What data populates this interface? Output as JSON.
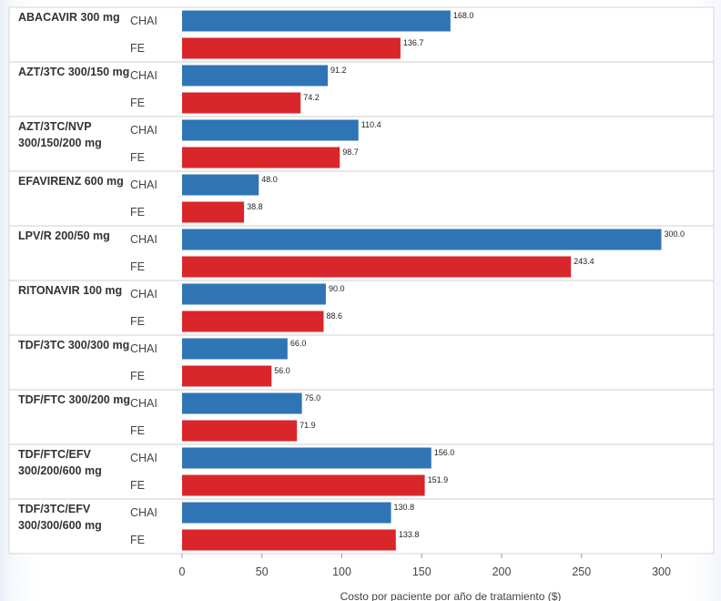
{
  "chart_data": {
    "type": "bar",
    "orientation": "horizontal",
    "categories": [
      "ABACAVIR 300 mg",
      "AZT/3TC 300/150 mg",
      "AZT/3TC/NVP 300/150/200 mg",
      "EFAVIRENZ 600 mg",
      "LPV/R 200/50 mg",
      "RITONAVIR 100 mg",
      "TDF/3TC 300/300 mg",
      "TDF/FTC 300/200 mg",
      "TDF/FTC/EFV 300/200/600 mg",
      "TDF/3TC/EFV 300/300/600 mg"
    ],
    "category_lines": [
      [
        "ABACAVIR 300 mg"
      ],
      [
        "AZT/3TC 300/150 mg"
      ],
      [
        "AZT/3TC/NVP",
        "300/150/200 mg"
      ],
      [
        "EFAVIRENZ 600 mg"
      ],
      [
        "LPV/R 200/50 mg"
      ],
      [
        "RITONAVIR 100 mg"
      ],
      [
        "TDF/3TC 300/300 mg"
      ],
      [
        "TDF/FTC 300/200 mg"
      ],
      [
        "TDF/FTC/EFV",
        "300/200/600 mg"
      ],
      [
        "TDF/3TC/EFV",
        "300/300/600 mg"
      ]
    ],
    "series": [
      {
        "name": "CHAI",
        "color": "#2f75b5",
        "values": [
          168.0,
          91.2,
          110.4,
          48.0,
          300.0,
          90.0,
          66.0,
          75.0,
          156.0,
          130.8
        ]
      },
      {
        "name": "FE",
        "color": "#d9262b",
        "values": [
          136.7,
          74.2,
          98.7,
          38.8,
          243.4,
          88.6,
          56.0,
          71.9,
          151.9,
          133.8
        ]
      }
    ],
    "value_labels": {
      "CHAI": [
        "168.0",
        "91.2",
        "110.4",
        "48.0",
        "300.0",
        "90.0",
        "66.0",
        "75.0",
        "156.0",
        "130.8"
      ],
      "FE": [
        "136.7",
        "74.2",
        "98.7",
        "38.8",
        "243.4",
        "88.6",
        "56.0",
        "71.9",
        "151.9",
        "133.8"
      ]
    },
    "xticks": [
      "0",
      "50",
      "100",
      "150",
      "200",
      "250",
      "300"
    ],
    "xlim": [
      0,
      340
    ],
    "xlabel": "Costo por paciente por año de tratamiento ($)",
    "ylabel": "",
    "title": "",
    "grid": false,
    "legend": "none"
  }
}
